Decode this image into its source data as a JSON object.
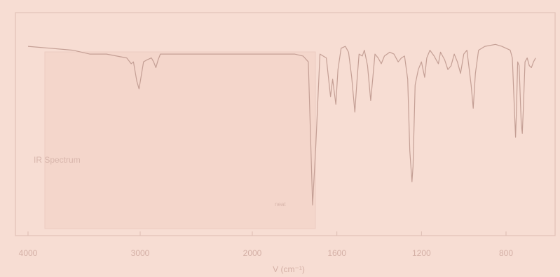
{
  "chart_data": {
    "type": "line",
    "title": "",
    "annotations": {
      "spectrum_label": "IR Spectrum",
      "small_label": "neat"
    },
    "xlabel": "V (cm⁻¹)",
    "ylabel": "",
    "x_ticks": [
      {
        "value": 4000,
        "label": "4000"
      },
      {
        "value": 3000,
        "label": "3000"
      },
      {
        "value": 2000,
        "label": "2000"
      },
      {
        "value": 1600,
        "label": "1600"
      },
      {
        "value": 1200,
        "label": "1200"
      },
      {
        "value": 800,
        "label": "800"
      }
    ],
    "xlim": [
      4000,
      600
    ],
    "ylim": [
      0,
      100
    ],
    "grid": false,
    "series": [
      {
        "values": [
          [
            4000,
            92
          ],
          [
            3800,
            91
          ],
          [
            3600,
            90
          ],
          [
            3450,
            88
          ],
          [
            3300,
            88
          ],
          [
            3120,
            86
          ],
          [
            3080,
            83
          ],
          [
            3060,
            84
          ],
          [
            3030,
            74
          ],
          [
            3010,
            70
          ],
          [
            2990,
            77
          ],
          [
            2970,
            84
          ],
          [
            2940,
            85
          ],
          [
            2900,
            86
          ],
          [
            2880,
            84
          ],
          [
            2860,
            81
          ],
          [
            2840,
            85
          ],
          [
            2820,
            88
          ],
          [
            2600,
            88
          ],
          [
            2400,
            88
          ],
          [
            2200,
            88
          ],
          [
            2000,
            88
          ],
          [
            1900,
            88
          ],
          [
            1800,
            88
          ],
          [
            1760,
            87
          ],
          [
            1735,
            84
          ],
          [
            1715,
            10
          ],
          [
            1700,
            40
          ],
          [
            1680,
            88
          ],
          [
            1650,
            86
          ],
          [
            1630,
            66
          ],
          [
            1620,
            75
          ],
          [
            1605,
            62
          ],
          [
            1595,
            80
          ],
          [
            1580,
            91
          ],
          [
            1560,
            92
          ],
          [
            1545,
            89
          ],
          [
            1530,
            76
          ],
          [
            1515,
            58
          ],
          [
            1505,
            74
          ],
          [
            1495,
            88
          ],
          [
            1480,
            87
          ],
          [
            1470,
            90
          ],
          [
            1455,
            82
          ],
          [
            1440,
            64
          ],
          [
            1430,
            76
          ],
          [
            1420,
            88
          ],
          [
            1405,
            86
          ],
          [
            1390,
            83
          ],
          [
            1375,
            87
          ],
          [
            1350,
            89
          ],
          [
            1330,
            88
          ],
          [
            1310,
            84
          ],
          [
            1295,
            86
          ],
          [
            1280,
            87
          ],
          [
            1265,
            75
          ],
          [
            1255,
            38
          ],
          [
            1245,
            22
          ],
          [
            1240,
            30
          ],
          [
            1230,
            72
          ],
          [
            1215,
            80
          ],
          [
            1200,
            84
          ],
          [
            1185,
            76
          ],
          [
            1175,
            86
          ],
          [
            1160,
            90
          ],
          [
            1140,
            87
          ],
          [
            1120,
            83
          ],
          [
            1110,
            89
          ],
          [
            1090,
            85
          ],
          [
            1075,
            80
          ],
          [
            1060,
            82
          ],
          [
            1045,
            88
          ],
          [
            1030,
            84
          ],
          [
            1015,
            78
          ],
          [
            1000,
            88
          ],
          [
            985,
            90
          ],
          [
            965,
            72
          ],
          [
            955,
            60
          ],
          [
            945,
            78
          ],
          [
            930,
            90
          ],
          [
            900,
            92
          ],
          [
            850,
            93
          ],
          [
            820,
            92
          ],
          [
            800,
            91
          ],
          [
            780,
            90
          ],
          [
            770,
            86
          ],
          [
            760,
            58
          ],
          [
            755,
            45
          ],
          [
            750,
            62
          ],
          [
            745,
            84
          ],
          [
            738,
            82
          ],
          [
            728,
            52
          ],
          [
            723,
            47
          ],
          [
            718,
            60
          ],
          [
            710,
            84
          ],
          [
            700,
            86
          ],
          [
            690,
            82
          ],
          [
            680,
            81
          ],
          [
            670,
            84
          ],
          [
            660,
            86
          ]
        ]
      }
    ]
  }
}
